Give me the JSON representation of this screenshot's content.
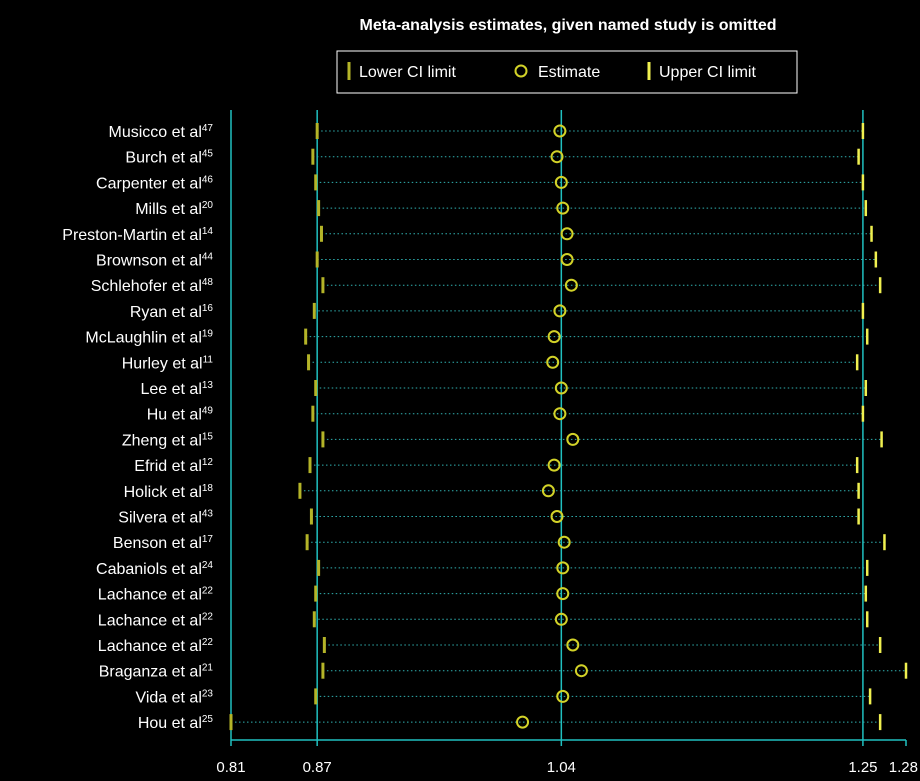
{
  "chart_data": {
    "type": "forest",
    "title": "Meta-analysis estimates, given named study is omitted",
    "legend": {
      "placement": "top",
      "entries": [
        "Lower CI limit",
        "Estimate",
        "Upper CI limit"
      ]
    },
    "x_ticks": [
      "0.81",
      "0.87",
      "1.04",
      "1.25",
      "1.28"
    ],
    "xlim": [
      0.81,
      1.28
    ],
    "reference_lines": [
      0.87,
      1.04,
      1.25
    ],
    "colors": {
      "background": "#000000",
      "axis": "#20c0c0",
      "lower": "#b4b428",
      "estimate": "#d2d228",
      "upper": "#f0f050",
      "dotted": "#30b0b0"
    },
    "studies": [
      {
        "name": "Musicco et al",
        "ref": "47",
        "lower": 0.87,
        "estimate": 1.039,
        "upper": 1.25
      },
      {
        "name": "Burch et al",
        "ref": "45",
        "lower": 0.867,
        "estimate": 1.037,
        "upper": 1.247
      },
      {
        "name": "Carpenter et al",
        "ref": "46",
        "lower": 0.869,
        "estimate": 1.04,
        "upper": 1.25
      },
      {
        "name": "Mills et al",
        "ref": "20",
        "lower": 0.871,
        "estimate": 1.041,
        "upper": 1.252
      },
      {
        "name": "Preston-Martin et al",
        "ref": "14",
        "lower": 0.873,
        "estimate": 1.044,
        "upper": 1.256
      },
      {
        "name": "Brownson et al",
        "ref": "44",
        "lower": 0.87,
        "estimate": 1.044,
        "upper": 1.259
      },
      {
        "name": "Schlehofer et al",
        "ref": "48",
        "lower": 0.874,
        "estimate": 1.047,
        "upper": 1.262
      },
      {
        "name": "Ryan et al",
        "ref": "16",
        "lower": 0.868,
        "estimate": 1.039,
        "upper": 1.25
      },
      {
        "name": "McLaughlin et al",
        "ref": "19",
        "lower": 0.862,
        "estimate": 1.035,
        "upper": 1.253
      },
      {
        "name": "Hurley et al",
        "ref": "11",
        "lower": 0.864,
        "estimate": 1.034,
        "upper": 1.246
      },
      {
        "name": "Lee et al",
        "ref": "13",
        "lower": 0.869,
        "estimate": 1.04,
        "upper": 1.252
      },
      {
        "name": "Hu et al",
        "ref": "49",
        "lower": 0.867,
        "estimate": 1.039,
        "upper": 1.25
      },
      {
        "name": "Zheng et al",
        "ref": "15",
        "lower": 0.874,
        "estimate": 1.048,
        "upper": 1.263
      },
      {
        "name": "Efrid et al",
        "ref": "12",
        "lower": 0.865,
        "estimate": 1.035,
        "upper": 1.246
      },
      {
        "name": "Holick et al",
        "ref": "18",
        "lower": 0.858,
        "estimate": 1.031,
        "upper": 1.247
      },
      {
        "name": "Silvera et al",
        "ref": "43",
        "lower": 0.866,
        "estimate": 1.037,
        "upper": 1.247
      },
      {
        "name": "Benson et al",
        "ref": "17",
        "lower": 0.863,
        "estimate": 1.042,
        "upper": 1.265
      },
      {
        "name": "Cabaniols et al",
        "ref": "24",
        "lower": 0.871,
        "estimate": 1.041,
        "upper": 1.253
      },
      {
        "name": "Lachance et al",
        "ref": "22",
        "lower": 0.869,
        "estimate": 1.041,
        "upper": 1.252
      },
      {
        "name": "Lachance et al",
        "ref": "22",
        "lower": 0.868,
        "estimate": 1.04,
        "upper": 1.253
      },
      {
        "name": "Lachance et al",
        "ref": "22",
        "lower": 0.875,
        "estimate": 1.048,
        "upper": 1.262
      },
      {
        "name": "Braganza et al",
        "ref": "21",
        "lower": 0.874,
        "estimate": 1.054,
        "upper": 1.28
      },
      {
        "name": "Vida et al",
        "ref": "23",
        "lower": 0.869,
        "estimate": 1.041,
        "upper": 1.255
      },
      {
        "name": "Hou et al",
        "ref": "25",
        "lower": 0.81,
        "estimate": 1.013,
        "upper": 1.262
      }
    ]
  }
}
